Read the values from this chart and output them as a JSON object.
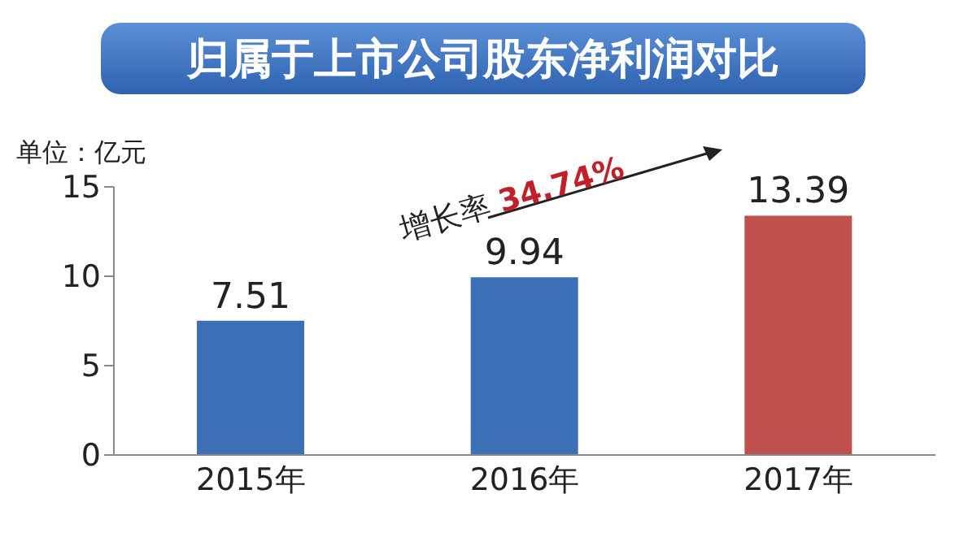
{
  "chart_data": {
    "type": "bar",
    "title": "归属于上市公司股东净利润对比",
    "ylabel": "单位：亿元",
    "categories": [
      "2015年",
      "2016年",
      "2017年"
    ],
    "values": [
      7.51,
      9.94,
      13.39
    ],
    "colors": [
      "#3d6fb6",
      "#3d6fb6",
      "#c0504d"
    ],
    "ylim": [
      0,
      15
    ],
    "yticks": [
      0,
      5,
      10,
      15
    ],
    "grid": false,
    "legend": false,
    "data_labels": true,
    "annotations": [
      "增长率 34.74%"
    ]
  }
}
